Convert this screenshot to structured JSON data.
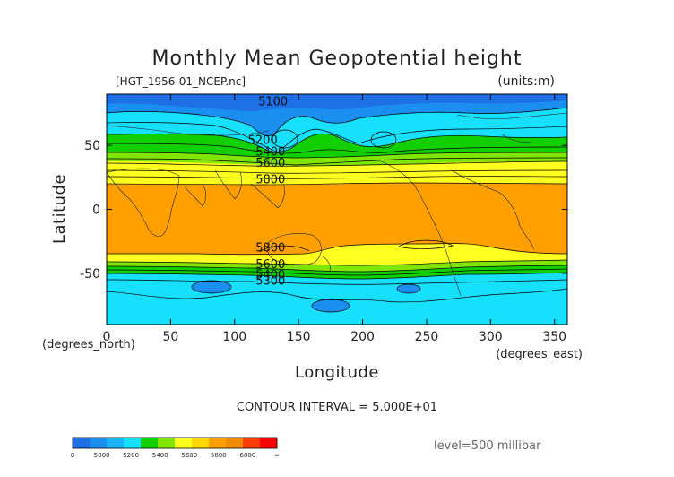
{
  "title": "Monthly Mean Geopotential height",
  "subtitle": "[HGT_1956-01_NCEP.nc]",
  "units": "(units:m)",
  "contour_interval": "CONTOUR INTERVAL = 5.000E+01",
  "level": "level=500 millibar",
  "chart_data": {
    "type": "heatmap",
    "title": "Monthly Mean Geopotential height",
    "xlabel": "Longitude",
    "ylabel": "Latitude",
    "x_unit_label": "(degrees_east)",
    "y_unit_label": "(degrees_north)",
    "xlim": [
      0,
      360
    ],
    "ylim": [
      -90,
      90
    ],
    "x_ticks": [
      0,
      50,
      100,
      150,
      200,
      250,
      300,
      350
    ],
    "y_ticks": [
      -50,
      0,
      50
    ],
    "x_tick_labels": [
      "0",
      "50",
      "100",
      "150",
      "200",
      "250",
      "300",
      "350"
    ],
    "y_tick_labels": [
      "-50",
      "0",
      "50"
    ],
    "contour_labels": [
      {
        "text": "5100",
        "lon": 130,
        "lat": 84
      },
      {
        "text": "5200",
        "lon": 122,
        "lat": 54
      },
      {
        "text": "5400",
        "lon": 128,
        "lat": 45
      },
      {
        "text": "5600",
        "lon": 128,
        "lat": 36
      },
      {
        "text": "5800",
        "lon": 128,
        "lat": 23
      },
      {
        "text": "5800",
        "lon": 128,
        "lat": -30
      },
      {
        "text": "5600",
        "lon": 128,
        "lat": -43
      },
      {
        "text": "5400",
        "lon": 128,
        "lat": -51
      },
      {
        "text": "5300",
        "lon": 128,
        "lat": -56
      }
    ],
    "color_scale": {
      "tick_labels": [
        "0",
        "5000",
        "5200",
        "5400",
        "5600",
        "5800",
        "6000",
        "∞"
      ],
      "colors": [
        "#1f6fe6",
        "#1a8ff0",
        "#18b4f5",
        "#16e0fb",
        "#12d000",
        "#80e600",
        "#ffff20",
        "#ffd700",
        "#ffa000",
        "#f28a00",
        "#ff3c00",
        "#ff0000"
      ]
    }
  }
}
